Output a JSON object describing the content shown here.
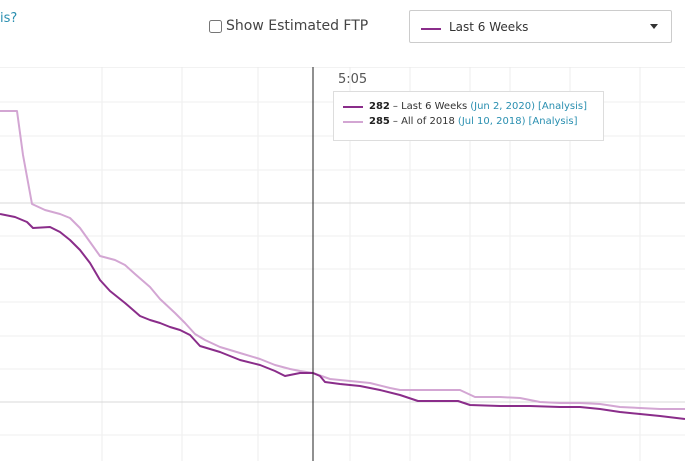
{
  "header": {
    "link_text": "is?",
    "ftp_checkbox_label": "Show Estimated FTP",
    "range_select": {
      "value": "Last 6 Weeks",
      "color": "#8a2d8a"
    }
  },
  "tooltip": {
    "time": "5:05",
    "rows": [
      {
        "value": "282",
        "label": "Last 6 Weeks",
        "date": "Jun 2, 2020",
        "link": "[Analysis]",
        "color": "#8a2d8a"
      },
      {
        "value": "285",
        "label": "All of 2018",
        "date": "Jul 10, 2018",
        "link": "[Analysis]",
        "color": "#d3a6d3"
      }
    ]
  },
  "chart_data": {
    "type": "line",
    "title": "",
    "xlabel": "",
    "ylabel": "",
    "grid": true,
    "cursor_x": 313,
    "series": [
      {
        "name": "Last 6 Weeks",
        "color": "#8a2d8a",
        "points": [
          [
            0,
            214
          ],
          [
            15,
            217
          ],
          [
            27,
            222
          ],
          [
            33,
            228
          ],
          [
            50,
            227
          ],
          [
            60,
            232
          ],
          [
            70,
            240
          ],
          [
            80,
            250
          ],
          [
            90,
            263
          ],
          [
            100,
            280
          ],
          [
            110,
            291
          ],
          [
            125,
            303
          ],
          [
            140,
            316
          ],
          [
            150,
            320
          ],
          [
            160,
            323
          ],
          [
            170,
            327
          ],
          [
            180,
            330
          ],
          [
            190,
            335
          ],
          [
            200,
            346
          ],
          [
            220,
            352
          ],
          [
            240,
            360
          ],
          [
            260,
            365
          ],
          [
            275,
            371
          ],
          [
            285,
            376
          ],
          [
            295,
            374
          ],
          [
            300,
            373
          ],
          [
            313,
            373
          ],
          [
            320,
            376
          ],
          [
            325,
            382
          ],
          [
            340,
            384
          ],
          [
            360,
            386
          ],
          [
            380,
            390
          ],
          [
            400,
            395
          ],
          [
            418,
            401
          ],
          [
            440,
            401
          ],
          [
            458,
            401
          ],
          [
            470,
            405
          ],
          [
            500,
            406
          ],
          [
            530,
            406
          ],
          [
            560,
            407
          ],
          [
            580,
            407
          ],
          [
            600,
            409
          ],
          [
            620,
            412
          ],
          [
            640,
            414
          ],
          [
            660,
            416
          ],
          [
            685,
            419
          ]
        ]
      },
      {
        "name": "All of 2018",
        "color": "#d3a6d3",
        "points": [
          [
            0,
            111
          ],
          [
            17,
            111
          ],
          [
            23,
            155
          ],
          [
            32,
            204
          ],
          [
            45,
            210
          ],
          [
            60,
            214
          ],
          [
            70,
            218
          ],
          [
            80,
            228
          ],
          [
            90,
            242
          ],
          [
            100,
            256
          ],
          [
            115,
            260
          ],
          [
            125,
            265
          ],
          [
            135,
            274
          ],
          [
            150,
            287
          ],
          [
            160,
            299
          ],
          [
            175,
            313
          ],
          [
            185,
            323
          ],
          [
            195,
            334
          ],
          [
            205,
            340
          ],
          [
            220,
            347
          ],
          [
            240,
            353
          ],
          [
            260,
            359
          ],
          [
            275,
            365
          ],
          [
            290,
            369
          ],
          [
            300,
            371
          ],
          [
            313,
            373
          ],
          [
            330,
            379
          ],
          [
            350,
            381
          ],
          [
            370,
            383
          ],
          [
            390,
            388
          ],
          [
            400,
            390
          ],
          [
            430,
            390
          ],
          [
            460,
            390
          ],
          [
            475,
            397
          ],
          [
            500,
            397
          ],
          [
            520,
            398
          ],
          [
            540,
            402
          ],
          [
            560,
            403
          ],
          [
            580,
            403
          ],
          [
            600,
            404
          ],
          [
            620,
            407
          ],
          [
            640,
            408
          ],
          [
            660,
            409
          ],
          [
            685,
            409
          ]
        ]
      }
    ]
  }
}
